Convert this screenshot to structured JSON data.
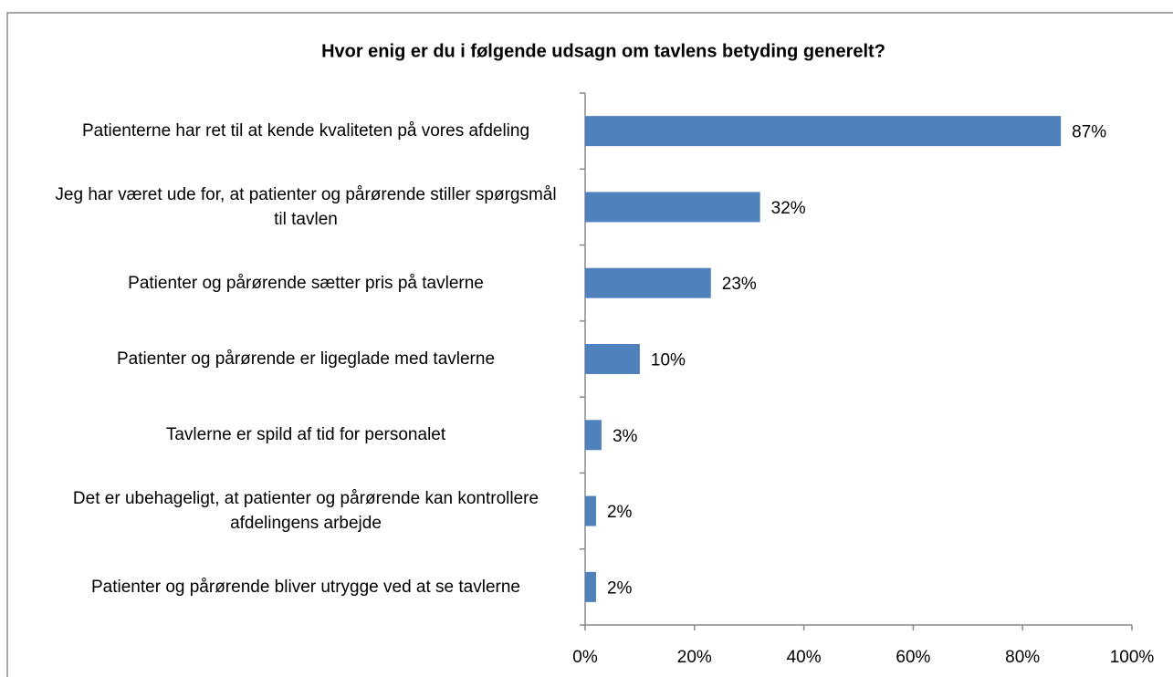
{
  "chart_data": {
    "type": "bar",
    "orientation": "horizontal",
    "title": "Hvor enig er du i følgende udsagn om tavlens betyding generelt?",
    "categories": [
      "Patienterne har ret til at kende kvaliteten på vores afdeling",
      "Jeg har været ude for, at patienter og pårørende stiller spørgsmål til tavlen",
      "Patienter og pårørende sætter pris på tavlerne",
      "Patienter og pårørende er ligeglade med tavlerne",
      "Tavlerne er spild af tid for personalet",
      "Det er ubehageligt, at patienter og pårørende kan kontrollere afdelingens arbejde",
      "Patienter og pårørende bliver utrygge ved at se tavlerne"
    ],
    "values": [
      87,
      32,
      23,
      10,
      3,
      2,
      2
    ],
    "value_labels": [
      "87%",
      "32%",
      "23%",
      "10%",
      "3%",
      "2%",
      "2%"
    ],
    "color": "#4f81bd",
    "xlim": [
      0,
      100
    ],
    "xticks": [
      {
        "value": 0,
        "label": "0%"
      },
      {
        "value": 20,
        "label": "20%"
      },
      {
        "value": 40,
        "label": "40%"
      },
      {
        "value": 60,
        "label": "60%"
      },
      {
        "value": 80,
        "label": "80%"
      },
      {
        "value": 100,
        "label": "100%"
      }
    ],
    "grid": false
  }
}
